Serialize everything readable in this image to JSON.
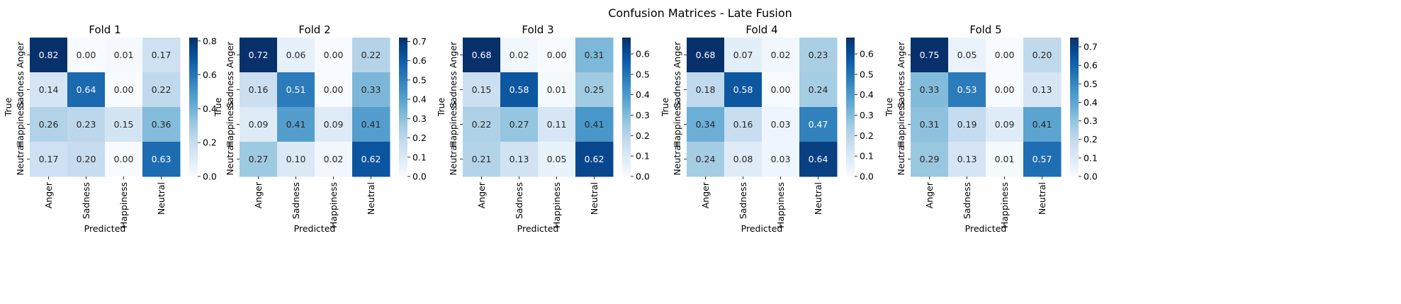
{
  "suptitle": "Confusion Matrices - Late Fusion",
  "chart_data": [
    {
      "type": "heatmap",
      "title": "Fold 1",
      "xlabel": "Predicted",
      "ylabel": "True",
      "x_categories": [
        "Anger",
        "Sadness",
        "Happiness",
        "Neutral"
      ],
      "y_categories": [
        "Anger",
        "Sadness",
        "Happiness",
        "Neutral"
      ],
      "values": [
        [
          0.82,
          0.0,
          0.01,
          0.17
        ],
        [
          0.14,
          0.64,
          0.0,
          0.22
        ],
        [
          0.26,
          0.23,
          0.15,
          0.36
        ],
        [
          0.17,
          0.2,
          0.0,
          0.63
        ]
      ],
      "colorbar_ticks": [
        "0.0",
        "0.2",
        "0.4",
        "0.6",
        "0.8"
      ],
      "colorbar_range": [
        0.0,
        0.82
      ]
    },
    {
      "type": "heatmap",
      "title": "Fold 2",
      "xlabel": "Predicted",
      "ylabel": "True",
      "x_categories": [
        "Anger",
        "Sadness",
        "Happiness",
        "Neutral"
      ],
      "y_categories": [
        "Anger",
        "Sadness",
        "Happiness",
        "Neutral"
      ],
      "values": [
        [
          0.72,
          0.06,
          0.0,
          0.22
        ],
        [
          0.16,
          0.51,
          0.0,
          0.33
        ],
        [
          0.09,
          0.41,
          0.09,
          0.41
        ],
        [
          0.27,
          0.1,
          0.02,
          0.62
        ]
      ],
      "colorbar_ticks": [
        "0.0",
        "0.1",
        "0.2",
        "0.3",
        "0.4",
        "0.5",
        "0.6",
        "0.7"
      ],
      "colorbar_range": [
        0.0,
        0.72
      ]
    },
    {
      "type": "heatmap",
      "title": "Fold 3",
      "xlabel": "Predicted",
      "ylabel": "True",
      "x_categories": [
        "Anger",
        "Sadness",
        "Happiness",
        "Neutral"
      ],
      "y_categories": [
        "Anger",
        "Sadness",
        "Happiness",
        "Neutral"
      ],
      "values": [
        [
          0.68,
          0.02,
          0.0,
          0.31
        ],
        [
          0.15,
          0.58,
          0.01,
          0.25
        ],
        [
          0.22,
          0.27,
          0.11,
          0.41
        ],
        [
          0.21,
          0.13,
          0.05,
          0.62
        ]
      ],
      "colorbar_ticks": [
        "0.0",
        "0.1",
        "0.2",
        "0.3",
        "0.4",
        "0.5",
        "0.6"
      ],
      "colorbar_range": [
        0.0,
        0.68
      ]
    },
    {
      "type": "heatmap",
      "title": "Fold 4",
      "xlabel": "Predicted",
      "ylabel": "True",
      "x_categories": [
        "Anger",
        "Sadness",
        "Happiness",
        "Neutral"
      ],
      "y_categories": [
        "Anger",
        "Sadness",
        "Happiness",
        "Neutral"
      ],
      "values": [
        [
          0.68,
          0.07,
          0.02,
          0.23
        ],
        [
          0.18,
          0.58,
          0.0,
          0.24
        ],
        [
          0.34,
          0.16,
          0.03,
          0.47
        ],
        [
          0.24,
          0.08,
          0.03,
          0.64
        ]
      ],
      "colorbar_ticks": [
        "0.0",
        "0.1",
        "0.2",
        "0.3",
        "0.4",
        "0.5",
        "0.6"
      ],
      "colorbar_range": [
        0.0,
        0.68
      ]
    },
    {
      "type": "heatmap",
      "title": "Fold 5",
      "xlabel": "Predicted",
      "ylabel": "True",
      "x_categories": [
        "Anger",
        "Sadness",
        "Happiness",
        "Neutral"
      ],
      "y_categories": [
        "Anger",
        "Sadness",
        "Happiness",
        "Neutral"
      ],
      "values": [
        [
          0.75,
          0.05,
          0.0,
          0.2
        ],
        [
          0.33,
          0.53,
          0.0,
          0.13
        ],
        [
          0.31,
          0.19,
          0.09,
          0.41
        ],
        [
          0.29,
          0.13,
          0.01,
          0.57
        ]
      ],
      "colorbar_ticks": [
        "0.0",
        "0.1",
        "0.2",
        "0.3",
        "0.4",
        "0.5",
        "0.6",
        "0.7"
      ],
      "colorbar_range": [
        0.0,
        0.75
      ]
    }
  ],
  "colormap": "Blues"
}
